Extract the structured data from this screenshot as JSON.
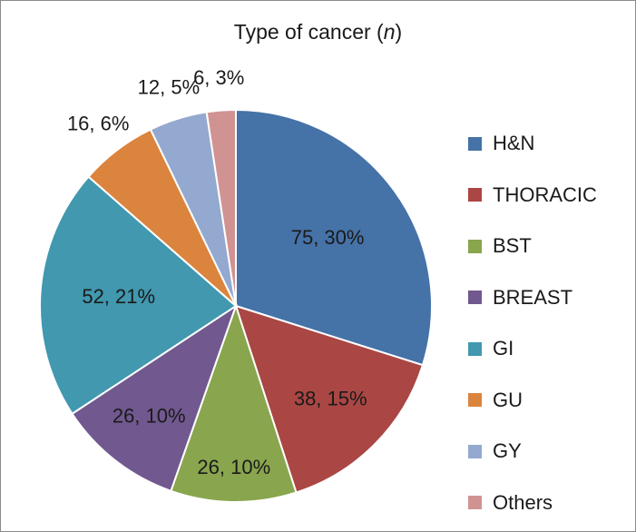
{
  "chart_data": {
    "type": "pie",
    "title": {
      "text": "Type of cancer (",
      "unit": "n",
      "suffix": ")"
    },
    "slices": [
      {
        "name": "H&N",
        "value": 75,
        "percent": "30%",
        "label": "75, 30%",
        "color": "#4572a7"
      },
      {
        "name": "THORACIC",
        "value": 38,
        "percent": "15%",
        "label": "38, 15%",
        "color": "#aa4643"
      },
      {
        "name": "BST",
        "value": 26,
        "percent": "10%",
        "label": "26, 10%",
        "color": "#89a54e"
      },
      {
        "name": "BREAST",
        "value": 26,
        "percent": "10%",
        "label": "26, 10%",
        "color": "#71588f"
      },
      {
        "name": "GI",
        "value": 52,
        "percent": "21%",
        "label": "52, 21%",
        "color": "#4198af"
      },
      {
        "name": "GU",
        "value": 16,
        "percent": "6%",
        "label": "16, 6%",
        "color": "#db843d"
      },
      {
        "name": "GY",
        "value": 12,
        "percent": "5%",
        "label": "12, 5%",
        "color": "#93a9cf"
      },
      {
        "name": "Others",
        "value": 6,
        "percent": "3%",
        "label": "6, 3%",
        "color": "#d19392"
      }
    ],
    "legend_position": "right"
  }
}
